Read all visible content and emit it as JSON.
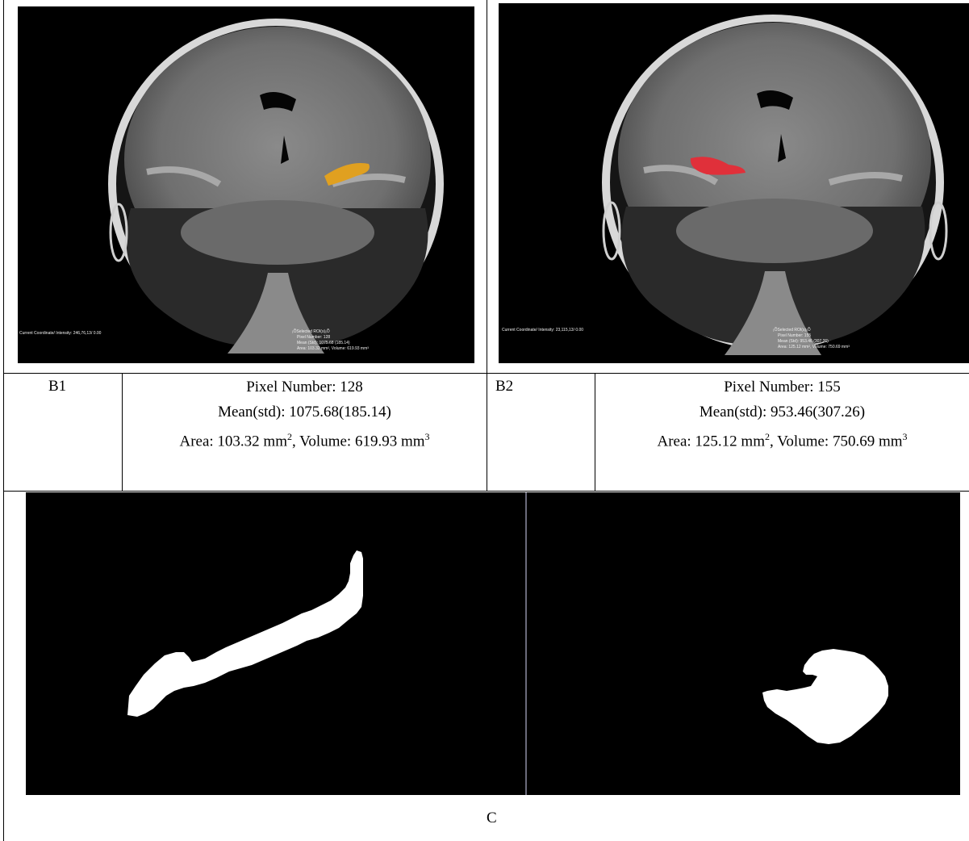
{
  "panel_b1": {
    "label": "B1",
    "viewer": {
      "coordinate": "Current Coordinate/ Intensity: 246,76,13/ 0.00",
      "roi_header": "¡ÕSelected ROI(s)¡Õ",
      "pixel": "Pixel Number: 128",
      "mean": "Mean (Std): 1075.68 (185.14)",
      "area": "Area: 103.32 mm², Volume: 619.93 mm³"
    },
    "roi_color": "#e0a020",
    "stats": {
      "pixel": "Pixel Number: 128",
      "mean": "Mean(std): 1075.68(185.14)",
      "area_prefix": "Area: 103.32 mm",
      "area_sup": "2",
      "volume_prefix": ", Volume: 619.93 mm",
      "volume_sup": "3"
    }
  },
  "panel_b2": {
    "label": "B2",
    "viewer": {
      "coordinate": "Current Coordinate/ Intensity: 23,115,13/ 0.00",
      "roi_header": "¡ÕSelected ROI(s)¡Õ",
      "pixel": "Pixel Number: 155",
      "mean": "Mean (Std): 953.46 (307.26)",
      "area": "Area: 125.12 mm², Volume: 750.69 mm³"
    },
    "roi_color": "#e0303a",
    "stats": {
      "pixel": "Pixel Number: 155",
      "mean": "Mean(std): 953.46(307.26)",
      "area_prefix": "Area: 125.12 mm",
      "area_sup": "2",
      "volume_prefix": ", Volume: 750.69 mm",
      "volume_sup": "3"
    }
  },
  "panel_c": {
    "label": "C"
  }
}
